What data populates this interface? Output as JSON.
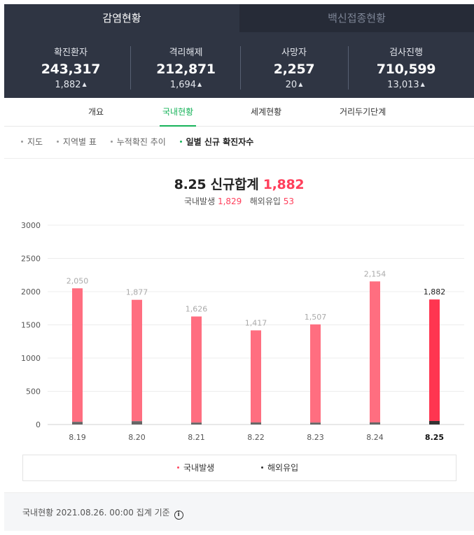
{
  "tabs": {
    "active": "감염현황",
    "inactive": "백신접종현황"
  },
  "stats": [
    {
      "label": "확진환자",
      "value": "243,317",
      "delta": "1,882"
    },
    {
      "label": "격리해제",
      "value": "212,871",
      "delta": "1,694"
    },
    {
      "label": "사망자",
      "value": "2,257",
      "delta": "20"
    },
    {
      "label": "검사진행",
      "value": "710,599",
      "delta": "13,013"
    }
  ],
  "subnav": [
    "개요",
    "국내현황",
    "세계현황",
    "거리두기단계"
  ],
  "filters": [
    "지도",
    "지역별 표",
    "누적확진 추이",
    "일별 신규 확진자수"
  ],
  "summary": {
    "title": "8.25 신규합계",
    "total": "1,882",
    "domestic_label": "국내발생",
    "domestic": "1,829",
    "overseas_label": "해외유입",
    "overseas": "53"
  },
  "legend": [
    {
      "label": "국내발생",
      "color": "#ff4a62"
    },
    {
      "label": "해외유입",
      "color": "#333333"
    }
  ],
  "footer": {
    "note": "국내현황 2021.08.26. 00:00 집계 기준",
    "info_symbol": "i"
  },
  "colors": {
    "domestic_bar": "#ff6e80",
    "domestic_bar_latest": "#ff3550",
    "overseas_bar": "#666666",
    "overseas_bar_latest": "#333333",
    "accent_green": "#17b35a"
  },
  "chart_data": {
    "type": "bar",
    "stacked": true,
    "categories": [
      "8.19",
      "8.20",
      "8.21",
      "8.22",
      "8.23",
      "8.24",
      "8.25"
    ],
    "totals": [
      2050,
      1877,
      1626,
      1417,
      1507,
      2154,
      1882
    ],
    "total_labels": [
      "2,050",
      "1,877",
      "1,626",
      "1,417",
      "1,507",
      "2,154",
      "1,882"
    ],
    "series": [
      {
        "name": "국내발생",
        "values": [
          2010,
          1827,
          1597,
          1386,
          1478,
          2122,
          1829
        ]
      },
      {
        "name": "해외유입",
        "values": [
          40,
          50,
          29,
          31,
          29,
          32,
          53
        ]
      }
    ],
    "highlight_index": 6,
    "yticks": [
      0,
      500,
      1000,
      1500,
      2000,
      2500,
      3000
    ],
    "ylim": [
      0,
      3000
    ],
    "grid": true,
    "legend": "bottom"
  }
}
